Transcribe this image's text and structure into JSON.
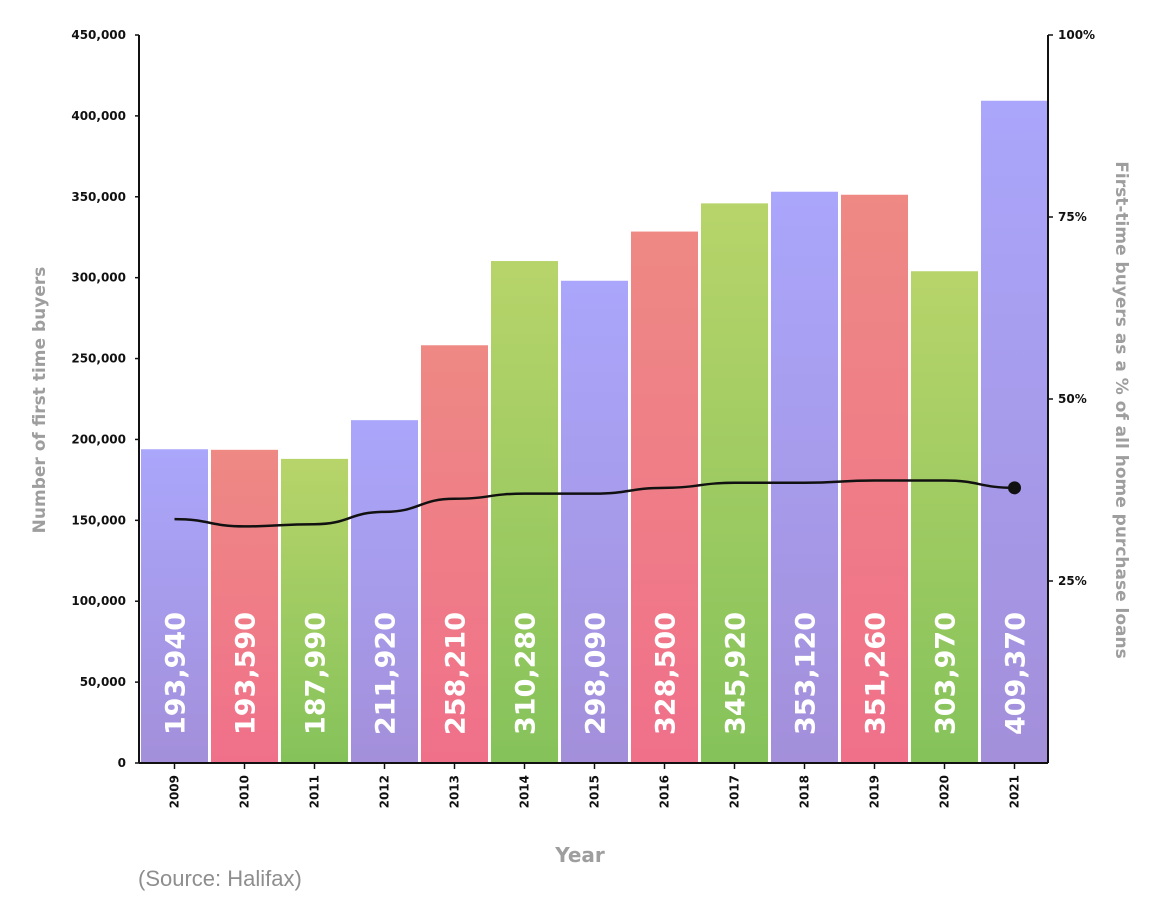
{
  "colors": {
    "purple": "#a9a5f6",
    "red": "#ec8782",
    "green": "#9ccb5f",
    "line": "#111111",
    "axis_title": "#9e9e9e"
  },
  "source": "(Source: Halifax)",
  "chart_data": {
    "type": "bar",
    "title": "",
    "xlabel": "Year",
    "ylabel": "Number of first time buyers",
    "y2label": "First-time buyers as a % of all home purchase loans",
    "ylim": [
      0,
      450000
    ],
    "y2lim": [
      0,
      100
    ],
    "yticks": [
      {
        "value": 450000,
        "label": "450,000"
      },
      {
        "value": 400000,
        "label": "400,000"
      },
      {
        "value": 350000,
        "label": "350,000"
      },
      {
        "value": 300000,
        "label": "300,000"
      },
      {
        "value": 250000,
        "label": "250,000"
      },
      {
        "value": 200000,
        "label": "200,000"
      },
      {
        "value": 150000,
        "label": "150,000"
      },
      {
        "value": 100000,
        "label": "100,000"
      },
      {
        "value": 50000,
        "label": "50,000"
      },
      {
        "value": 0,
        "label": "0"
      }
    ],
    "y2ticks": [
      {
        "value": 100,
        "label": "100%"
      },
      {
        "value": 75,
        "label": "75%"
      },
      {
        "value": 50,
        "label": "50%"
      },
      {
        "value": 25,
        "label": "25%"
      }
    ],
    "categories": [
      "2009",
      "2010",
      "2011",
      "2012",
      "2013",
      "2014",
      "2015",
      "2016",
      "2017",
      "2018",
      "2019",
      "2020",
      "2021"
    ],
    "bar_colors": [
      "purple",
      "red",
      "green",
      "purple",
      "red",
      "green",
      "purple",
      "red",
      "green",
      "purple",
      "red",
      "green",
      "purple"
    ],
    "series": [
      {
        "type": "bar",
        "values": [
          193940,
          193590,
          187990,
          211920,
          258210,
          310280,
          298090,
          328500,
          345920,
          353120,
          351260,
          303970,
          409370
        ],
        "labels": [
          "193,940",
          "193,590",
          "187,990",
          "211,920",
          "258,210",
          "310,280",
          "298,090",
          "328,500",
          "345,920",
          "353,120",
          "351,260",
          "303,970",
          "409,370"
        ]
      },
      {
        "type": "line",
        "axis": "right",
        "values": [
          33.5,
          32.5,
          32.8,
          34.5,
          36.3,
          37.0,
          37.0,
          37.8,
          38.5,
          38.5,
          38.8,
          38.8,
          37.8
        ],
        "end_marker": true
      }
    ],
    "grid": false,
    "legend": "none"
  }
}
